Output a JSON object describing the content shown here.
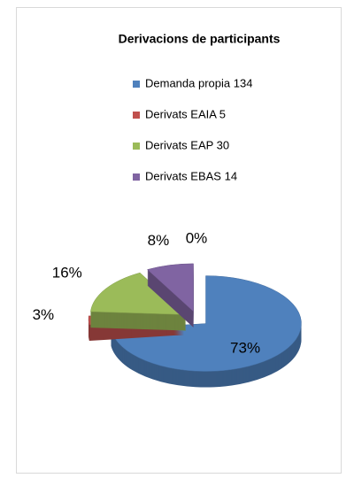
{
  "chart_data": {
    "type": "pie",
    "title": "Derivacions de participants",
    "categories": [
      "Demanda propia 134",
      "Derivats EAIA 5",
      "Derivats EAP 30",
      "Derivats EBAS 14",
      null
    ],
    "values": [
      73,
      3,
      16,
      8,
      0
    ],
    "colors": [
      "#4f81bd",
      "#c0504d",
      "#9bbb59",
      "#8064a2",
      "#4bacc6"
    ],
    "value_labels": [
      "73%",
      "3%",
      "16%",
      "8%",
      "0%"
    ],
    "legend": "top"
  }
}
